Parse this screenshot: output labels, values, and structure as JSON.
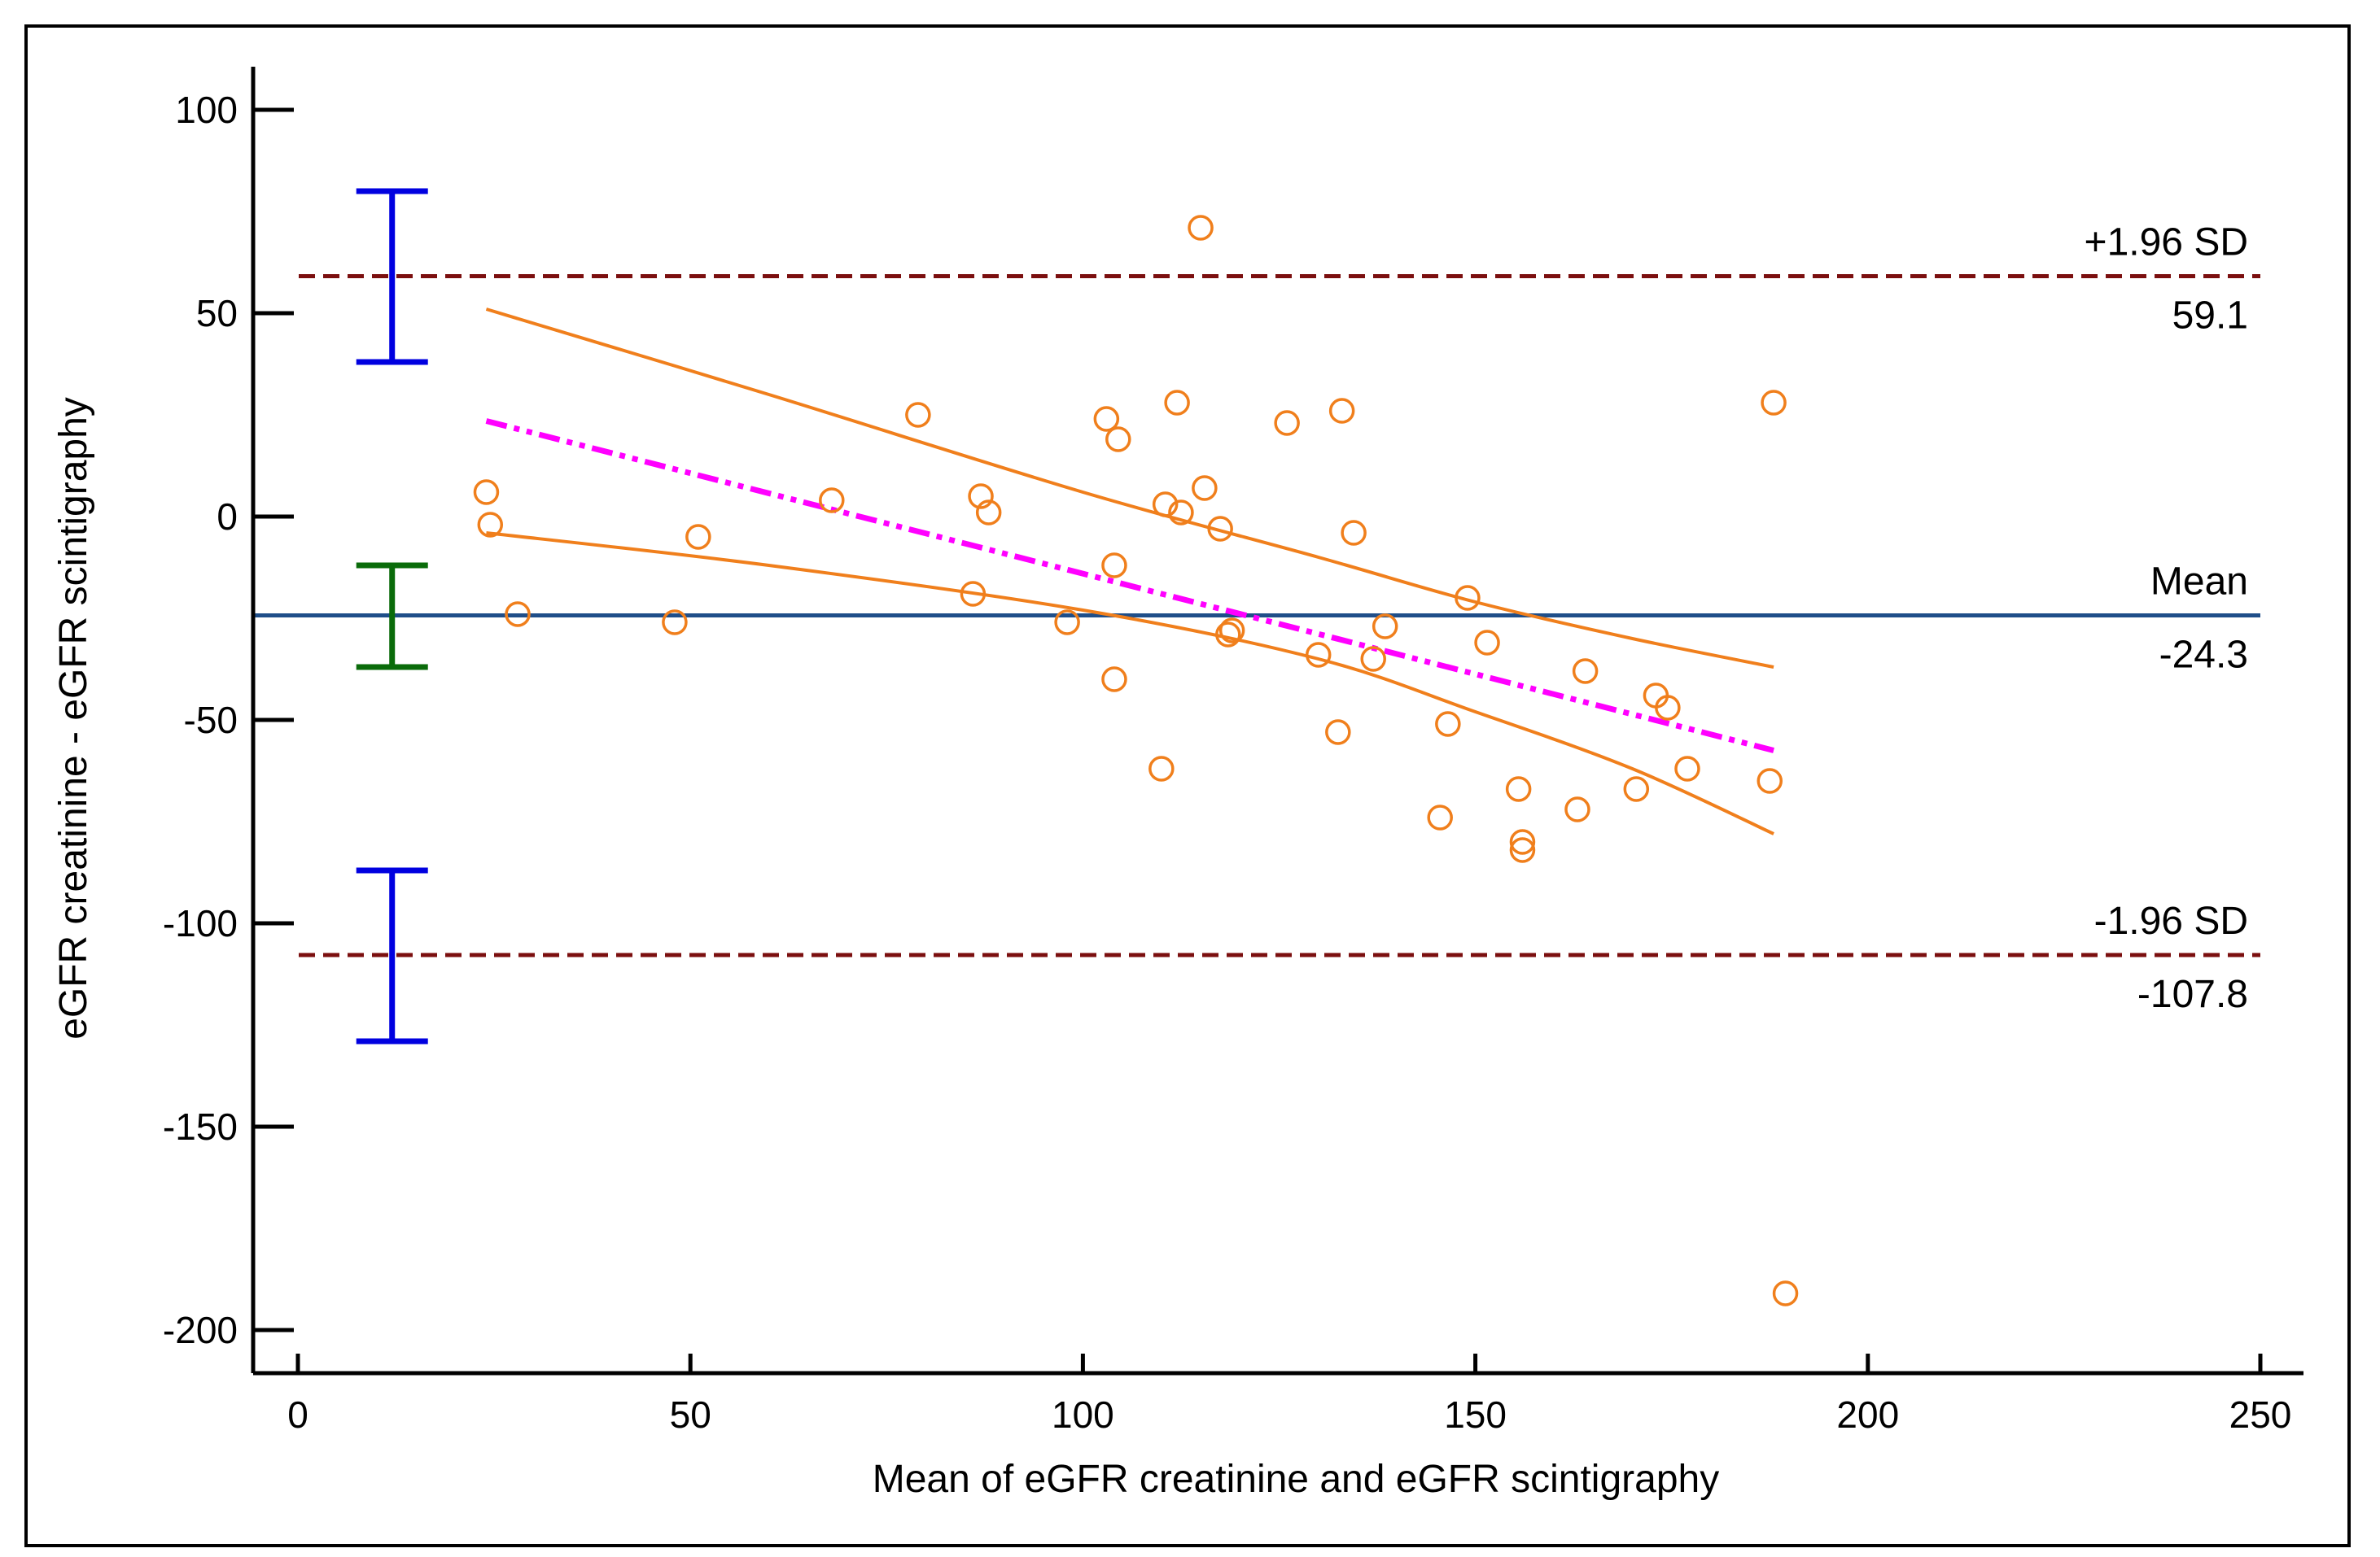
{
  "chart_data": {
    "type": "scatter",
    "title": "",
    "xlabel": "Mean of eGFR creatinine and eGFR scintigraphy",
    "ylabel": "eGFR creatinine - eGFR scintigraphy",
    "xlim": [
      0,
      250
    ],
    "ylim": [
      -200,
      100
    ],
    "xticks": [
      0,
      50,
      100,
      150,
      200,
      250
    ],
    "yticks": [
      -200,
      -150,
      -100,
      -50,
      0,
      50,
      100
    ],
    "grid": false,
    "colors": {
      "points": "#F07F1C",
      "ci_band": "#F07F1C",
      "regression": "#FF00FF",
      "mean_line": "#1F4E89",
      "limit_lines": "#7B0F0F",
      "limit_ci": "#0000E0",
      "mean_ci": "#0A6B0A"
    },
    "reference_lines": [
      {
        "name": "upper-loa",
        "label": "+1.96 SD",
        "value_label": "59.1",
        "value": 59.1,
        "style": "dashed"
      },
      {
        "name": "mean",
        "label": "Mean",
        "value_label": "-24.3",
        "value": -24.3,
        "style": "solid"
      },
      {
        "name": "lower-loa",
        "label": "-1.96 SD",
        "value_label": "-107.8",
        "value": -107.8,
        "style": "dashed"
      }
    ],
    "error_bars": [
      {
        "name": "upper-loa-ci",
        "x": 12,
        "low": 38,
        "high": 80,
        "color": "#0000E0"
      },
      {
        "name": "mean-ci",
        "x": 12,
        "low": -37,
        "high": -12,
        "color": "#0A6B0A"
      },
      {
        "name": "lower-loa-ci",
        "x": 12,
        "low": -129,
        "high": -87,
        "color": "#0000E0"
      }
    ],
    "regression_line": {
      "x": [
        24,
        188
      ],
      "y": [
        23.5,
        -57.5
      ],
      "style": "dash-dot"
    },
    "confidence_band": {
      "upper": {
        "x": [
          24,
          60,
          100,
          130,
          150,
          170,
          188
        ],
        "y": [
          51,
          30,
          6,
          -10,
          -21,
          -30,
          -37
        ]
      },
      "lower": {
        "x": [
          24,
          60,
          100,
          130,
          150,
          170,
          188
        ],
        "y": [
          -4,
          -12,
          -23,
          -35,
          -48,
          -62,
          -78
        ]
      }
    },
    "points": [
      {
        "x": 24,
        "y": 6
      },
      {
        "x": 24.5,
        "y": -2
      },
      {
        "x": 28,
        "y": -24
      },
      {
        "x": 48,
        "y": -26
      },
      {
        "x": 51,
        "y": -5
      },
      {
        "x": 68,
        "y": 4
      },
      {
        "x": 79,
        "y": 25
      },
      {
        "x": 86,
        "y": -19
      },
      {
        "x": 87,
        "y": 5
      },
      {
        "x": 88,
        "y": 1
      },
      {
        "x": 98,
        "y": -26
      },
      {
        "x": 103,
        "y": 24
      },
      {
        "x": 104,
        "y": -12
      },
      {
        "x": 104,
        "y": -40
      },
      {
        "x": 104.5,
        "y": 19
      },
      {
        "x": 110,
        "y": -62
      },
      {
        "x": 110.5,
        "y": 3
      },
      {
        "x": 112,
        "y": 28
      },
      {
        "x": 112.5,
        "y": 1
      },
      {
        "x": 115,
        "y": 71
      },
      {
        "x": 115.5,
        "y": 7
      },
      {
        "x": 117.5,
        "y": -3
      },
      {
        "x": 118.5,
        "y": -29
      },
      {
        "x": 119,
        "y": -28
      },
      {
        "x": 126,
        "y": 23
      },
      {
        "x": 130,
        "y": -34
      },
      {
        "x": 132.5,
        "y": -53
      },
      {
        "x": 133,
        "y": 26
      },
      {
        "x": 134.5,
        "y": -4
      },
      {
        "x": 137,
        "y": -35
      },
      {
        "x": 138.5,
        "y": -27
      },
      {
        "x": 145.5,
        "y": -74
      },
      {
        "x": 146.5,
        "y": -51
      },
      {
        "x": 149,
        "y": -20
      },
      {
        "x": 151.5,
        "y": -31
      },
      {
        "x": 155.5,
        "y": -67
      },
      {
        "x": 156,
        "y": -80
      },
      {
        "x": 156,
        "y": -82
      },
      {
        "x": 163,
        "y": -72
      },
      {
        "x": 164,
        "y": -38
      },
      {
        "x": 170.5,
        "y": -67
      },
      {
        "x": 173,
        "y": -44
      },
      {
        "x": 174.5,
        "y": -47
      },
      {
        "x": 177,
        "y": -62
      },
      {
        "x": 187.5,
        "y": -65
      },
      {
        "x": 188,
        "y": 28
      },
      {
        "x": 189.5,
        "y": -191
      }
    ]
  }
}
